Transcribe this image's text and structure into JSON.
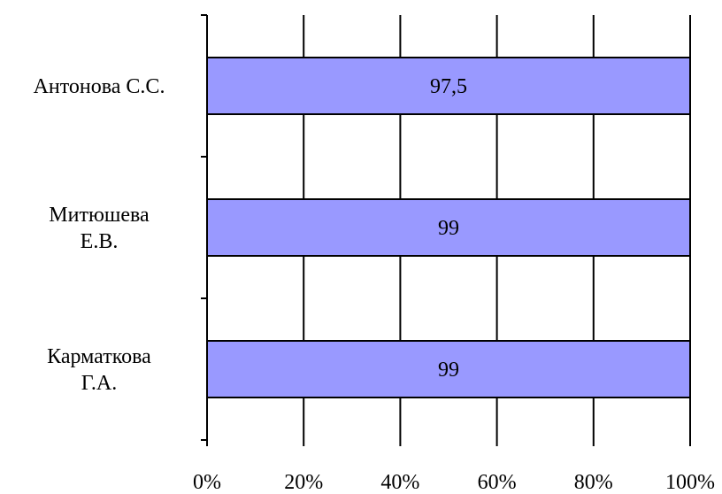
{
  "chart_data": {
    "type": "bar",
    "orientation": "horizontal",
    "stacked_percent": true,
    "categories": [
      [
        "Антонова С.С."
      ],
      [
        "Митюшева",
        "Е.В."
      ],
      [
        "Карматкова",
        "Г.А."
      ]
    ],
    "values": [
      97.5,
      99,
      99
    ],
    "data_labels": [
      "97,5",
      "99",
      "99"
    ],
    "x_ticks": [
      "0%",
      "20%",
      "40%",
      "60%",
      "80%",
      "100%"
    ],
    "xlim": [
      0,
      100
    ],
    "grid": true,
    "bar_color": "#9999FF",
    "bar_border_color": "#000000",
    "title": "",
    "xlabel": "",
    "ylabel": ""
  }
}
